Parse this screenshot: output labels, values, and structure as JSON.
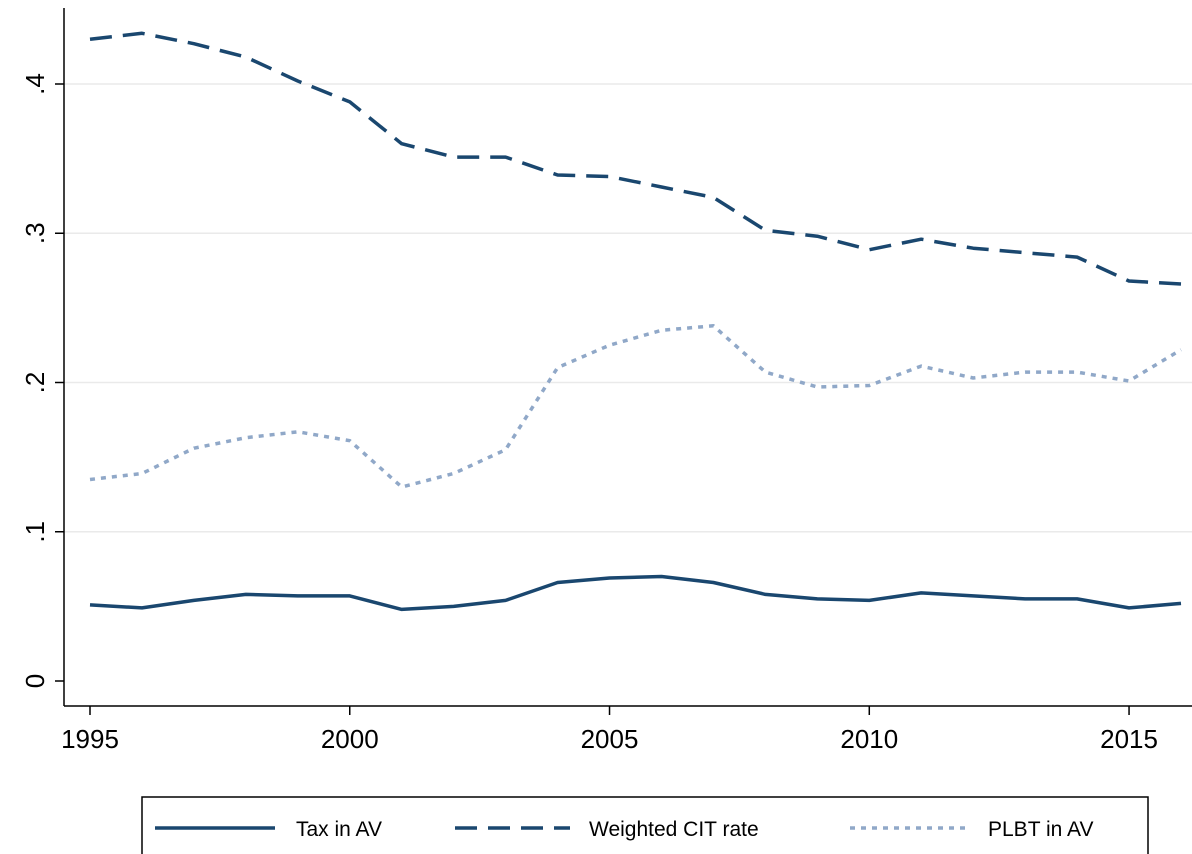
{
  "chart_data": {
    "type": "line",
    "title": "",
    "xlabel": "",
    "ylabel": "",
    "xlim": [
      1995,
      2016
    ],
    "ylim": [
      0,
      0.45
    ],
    "x_ticks": [
      1995,
      2000,
      2005,
      2010,
      2015
    ],
    "x_tick_labels": [
      "1995",
      "2000",
      "2005",
      "2010",
      "2015"
    ],
    "y_ticks": [
      0,
      0.1,
      0.2,
      0.3,
      0.4
    ],
    "y_tick_labels": [
      "0",
      ".1",
      ".2",
      ".3",
      ".4"
    ],
    "grid": true,
    "legend_position": "bottom",
    "x": [
      1995,
      1996,
      1997,
      1998,
      1999,
      2000,
      2001,
      2002,
      2003,
      2004,
      2005,
      2006,
      2007,
      2008,
      2009,
      2010,
      2011,
      2012,
      2013,
      2014,
      2015,
      2016
    ],
    "series": [
      {
        "name": "Tax in AV",
        "style": "solid",
        "color": "#1a476f",
        "values": [
          0.051,
          0.049,
          0.054,
          0.058,
          0.057,
          0.057,
          0.048,
          0.05,
          0.054,
          0.066,
          0.069,
          0.07,
          0.066,
          0.058,
          0.055,
          0.054,
          0.059,
          0.057,
          0.055,
          0.055,
          0.049,
          0.052
        ]
      },
      {
        "name": "Weighted CIT rate",
        "style": "dashed",
        "color": "#1a476f",
        "values": [
          0.43,
          0.434,
          0.427,
          0.418,
          0.402,
          0.388,
          0.36,
          0.351,
          0.351,
          0.339,
          0.338,
          0.331,
          0.324,
          0.302,
          0.298,
          0.289,
          0.296,
          0.29,
          0.287,
          0.284,
          0.268,
          0.266
        ]
      },
      {
        "name": "PLBT in AV",
        "style": "dotted",
        "color": "#90a8c8",
        "values": [
          0.135,
          0.139,
          0.156,
          0.163,
          0.167,
          0.161,
          0.13,
          0.139,
          0.155,
          0.21,
          0.225,
          0.235,
          0.238,
          0.207,
          0.197,
          0.198,
          0.211,
          0.203,
          0.207,
          0.207,
          0.201,
          0.222
        ]
      }
    ]
  }
}
